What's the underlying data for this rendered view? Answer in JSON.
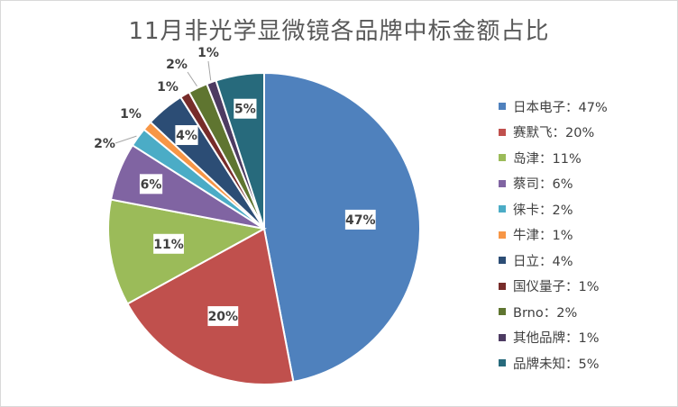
{
  "chart_data": {
    "type": "pie",
    "title": "11月非光学显微镜各品牌中标金额占比",
    "slices": [
      {
        "name": "日本电子",
        "value": 47,
        "label": "47%",
        "legend": "日本电子：47%",
        "color": "#4f81bd"
      },
      {
        "name": "赛默飞",
        "value": 20,
        "label": "20%",
        "legend": "赛默飞：20%",
        "color": "#c0504d"
      },
      {
        "name": "岛津",
        "value": 11,
        "label": "11%",
        "legend": "岛津：11%",
        "color": "#9bbb59"
      },
      {
        "name": "蔡司",
        "value": 6,
        "label": "6%",
        "legend": "蔡司：6%",
        "color": "#8064a2"
      },
      {
        "name": "徕卡",
        "value": 2,
        "label": "2%",
        "legend": "徕卡：2%",
        "color": "#4bacc6"
      },
      {
        "name": "牛津",
        "value": 1,
        "label": "1%",
        "legend": "牛津：1%",
        "color": "#f79646"
      },
      {
        "name": "日立",
        "value": 4,
        "label": "4%",
        "legend": "日立：4%",
        "color": "#2c4d75"
      },
      {
        "name": "国仪量子",
        "value": 1,
        "label": "1%",
        "legend": "国仪量子：1%",
        "color": "#772c2a"
      },
      {
        "name": "Brno",
        "value": 2,
        "label": "2%",
        "legend": "Brno：2%",
        "color": "#5f7530"
      },
      {
        "name": "其他品牌",
        "value": 1,
        "label": "1%",
        "legend": "其他品牌：1%",
        "color": "#4d3b62"
      },
      {
        "name": "品牌未知",
        "value": 5,
        "label": "5%",
        "legend": "品牌未知：5%",
        "color": "#276a7c"
      }
    ],
    "legend_position": "right"
  }
}
